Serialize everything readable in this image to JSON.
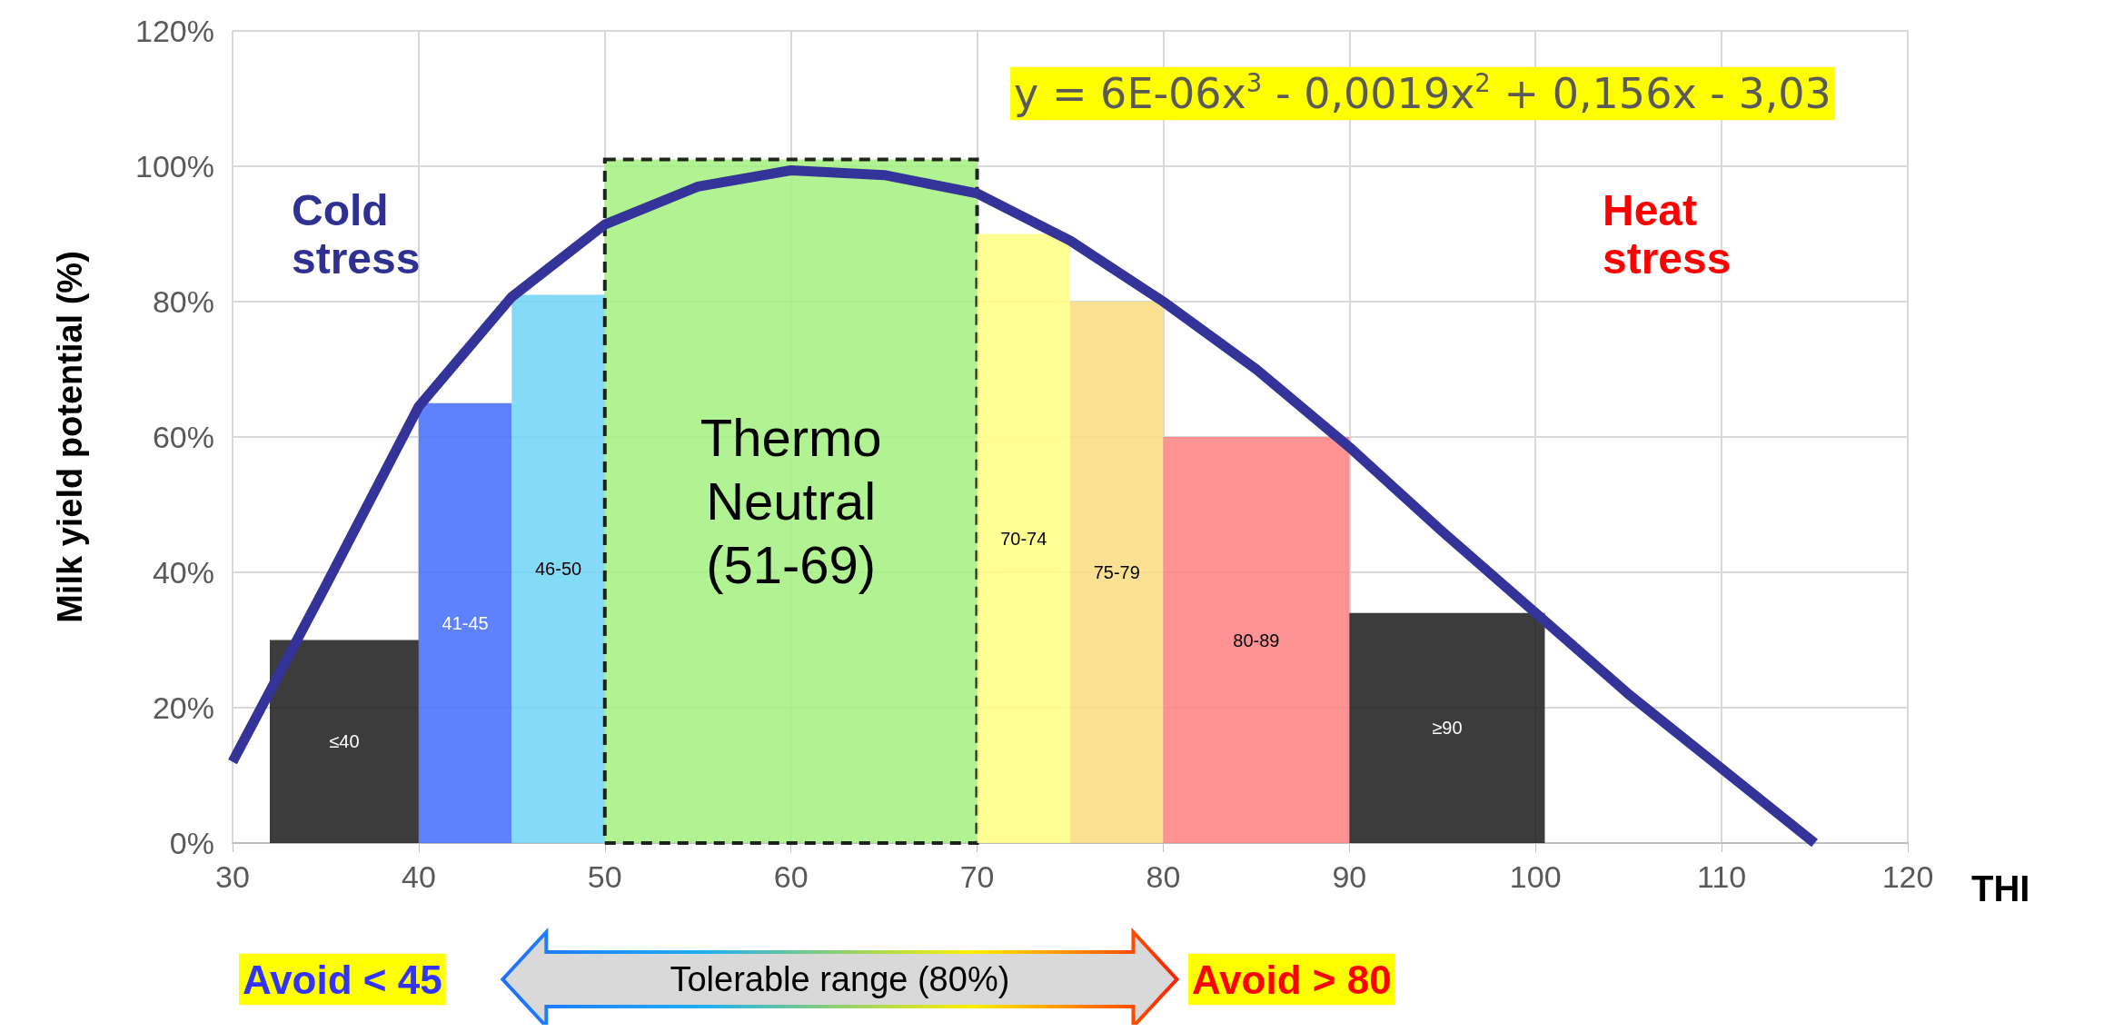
{
  "chart_data": {
    "type": "histogram",
    "xlabel": "THI",
    "ylabel": "Milk yield potential (%)",
    "bins": [
      32,
      40,
      45,
      50,
      70,
      75,
      80,
      90,
      100.5
    ],
    "values": [
      30,
      65,
      81,
      101,
      90,
      80,
      60,
      34
    ],
    "colors": [
      "#1a1a1a",
      "#416bff",
      "#6dd5f7",
      "#a3f07f",
      "#ffff80",
      "#fddc80",
      "#ff8080",
      "#1a1a1a"
    ],
    "value_labels": [
      "≤40",
      "41-45",
      "46-50",
      "Thermo\nNeutral\n(51-69)",
      "70-74",
      "75-79",
      "80-89",
      "≥90"
    ],
    "series": [
      {
        "type": "line",
        "color": "#333399",
        "x": [
          30,
          35,
          40,
          45,
          50,
          55,
          60,
          65,
          70,
          75,
          80,
          85,
          90,
          95,
          100,
          105,
          110,
          115
        ],
        "values": [
          12,
          38,
          64.5,
          80.7,
          91.4,
          97,
          99.4,
          98.7,
          96,
          89,
          80,
          70,
          58.5,
          46,
          34,
          22,
          11,
          0
        ]
      }
    ],
    "marker": "none",
    "xlim": [
      30,
      120
    ],
    "xticks": [
      30,
      40,
      50,
      60,
      70,
      80,
      90,
      100,
      110,
      120
    ],
    "ylim": [
      0,
      120
    ],
    "yticks": [
      {
        "value": 0,
        "label": "0%"
      },
      {
        "value": 20,
        "label": "20%"
      },
      {
        "value": 40,
        "label": "40%"
      },
      {
        "value": 60,
        "label": "60%"
      },
      {
        "value": 80,
        "label": "80%"
      },
      {
        "value": 100,
        "label": "100%"
      },
      {
        "value": 120,
        "label": "120%"
      }
    ],
    "grid": true,
    "annotations": [
      "y = 6E-06x$^{3}$ - 0,0019x$^{2}$ + 0,156x - 3,03",
      "Cold\nstress",
      "Heat\nstress",
      "Avoid < 45",
      "Tolerable range (80%)",
      "Avoid > 80"
    ]
  }
}
